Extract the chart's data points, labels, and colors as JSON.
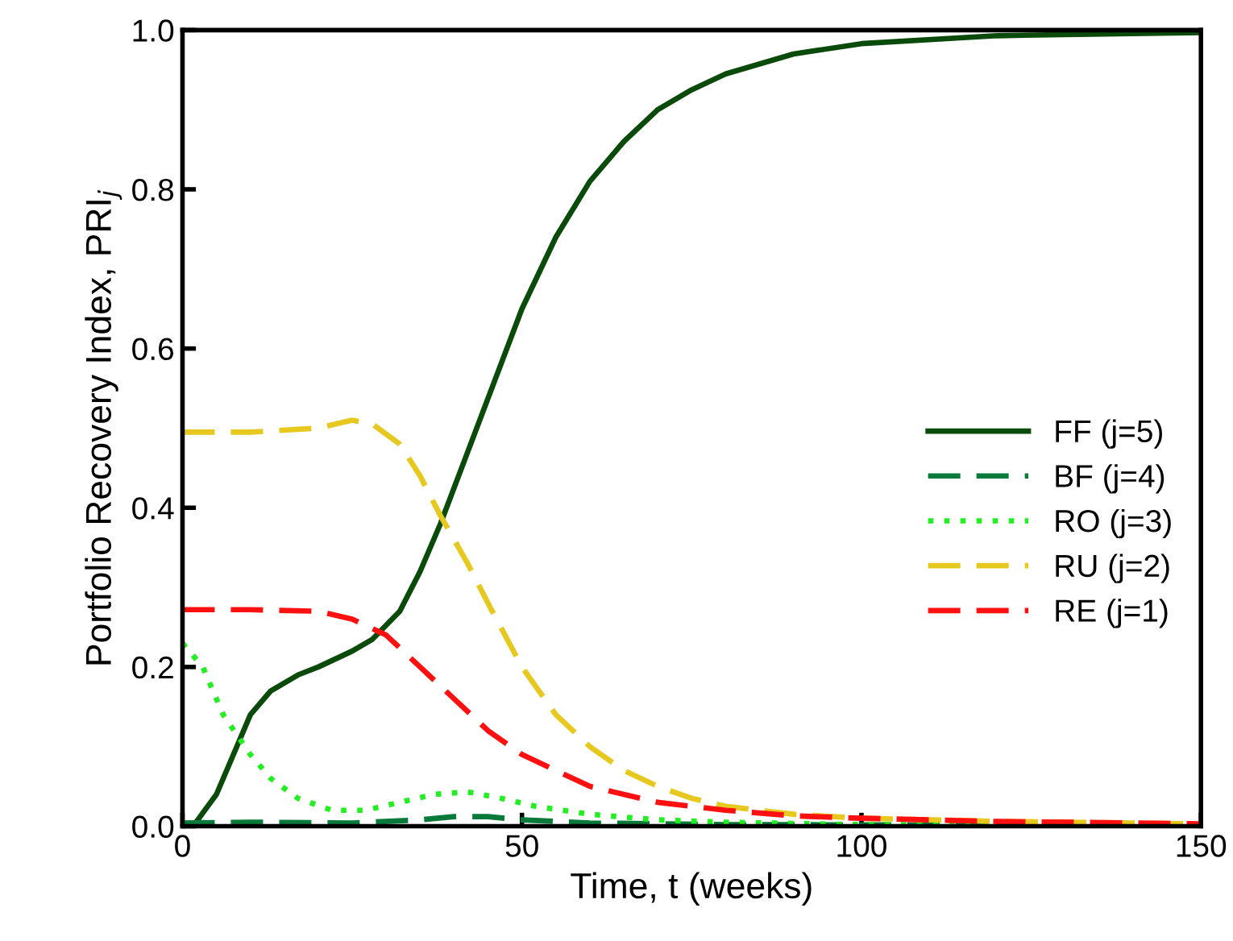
{
  "chart_data": {
    "type": "line",
    "xlabel": "Time, t (weeks)",
    "ylabel": "Portfolio Recovery Index, PRI$_{j}$",
    "xlim": [
      0,
      150
    ],
    "xticks": [
      0,
      50,
      100,
      150
    ],
    "ylim": [
      0,
      1
    ],
    "yticks": [
      {
        "value": 0,
        "label": "0.0"
      },
      {
        "value": 0.2,
        "label": "0.2"
      },
      {
        "value": 0.4,
        "label": "0.4"
      },
      {
        "value": 0.6,
        "label": "0.6"
      },
      {
        "value": 0.8,
        "label": "0.8"
      },
      {
        "value": 1,
        "label": "1.0"
      }
    ],
    "grid": false,
    "legend": "right",
    "marker": "none",
    "series": [
      {
        "name": "FF (j=5)",
        "color": "#0a4a0a",
        "line_style": "solid",
        "x": [
          0,
          2,
          5,
          8,
          10,
          13,
          17,
          20,
          25,
          28,
          32,
          35,
          38,
          42,
          46,
          50,
          55,
          60,
          65,
          70,
          75,
          80,
          90,
          100,
          120,
          150
        ],
        "values": [
          0,
          0.005,
          0.04,
          0.1,
          0.14,
          0.17,
          0.19,
          0.2,
          0.22,
          0.235,
          0.27,
          0.32,
          0.38,
          0.47,
          0.56,
          0.65,
          0.74,
          0.81,
          0.86,
          0.9,
          0.925,
          0.945,
          0.97,
          0.983,
          0.993,
          0.997
        ]
      },
      {
        "name": "BF (j=4)",
        "color": "#0a7a3a",
        "line_style": "dashed",
        "x": [
          0,
          10,
          25,
          35,
          40,
          45,
          50,
          60,
          80,
          150
        ],
        "values": [
          0.004,
          0.005,
          0.004,
          0.008,
          0.012,
          0.012,
          0.008,
          0.004,
          0.002,
          0.001
        ]
      },
      {
        "name": "RO (j=3)",
        "color": "#22ee22",
        "line_style": "dotted",
        "x": [
          0,
          3,
          6,
          10,
          13,
          17,
          22,
          27,
          32,
          37,
          42,
          47,
          52,
          60,
          70,
          80,
          100,
          150
        ],
        "values": [
          0.23,
          0.2,
          0.14,
          0.09,
          0.06,
          0.035,
          0.02,
          0.02,
          0.03,
          0.04,
          0.043,
          0.035,
          0.025,
          0.015,
          0.008,
          0.005,
          0.002,
          0.001
        ]
      },
      {
        "name": "RU (j=2)",
        "color": "#e6c81e",
        "line_style": "dashed",
        "x": [
          0,
          10,
          20,
          25,
          28,
          32,
          35,
          38,
          42,
          45,
          50,
          55,
          60,
          65,
          70,
          75,
          80,
          90,
          100,
          120,
          150
        ],
        "values": [
          0.495,
          0.495,
          0.5,
          0.51,
          0.505,
          0.48,
          0.44,
          0.39,
          0.33,
          0.28,
          0.2,
          0.14,
          0.1,
          0.07,
          0.05,
          0.035,
          0.025,
          0.015,
          0.01,
          0.006,
          0.003
        ]
      },
      {
        "name": "RE (j=1)",
        "color": "#ff1010",
        "line_style": "dashed",
        "x": [
          0,
          10,
          20,
          25,
          30,
          35,
          40,
          45,
          50,
          55,
          60,
          70,
          80,
          90,
          100,
          120,
          150
        ],
        "values": [
          0.272,
          0.272,
          0.27,
          0.26,
          0.24,
          0.2,
          0.16,
          0.12,
          0.09,
          0.07,
          0.05,
          0.03,
          0.02,
          0.013,
          0.01,
          0.006,
          0.003
        ]
      }
    ]
  }
}
